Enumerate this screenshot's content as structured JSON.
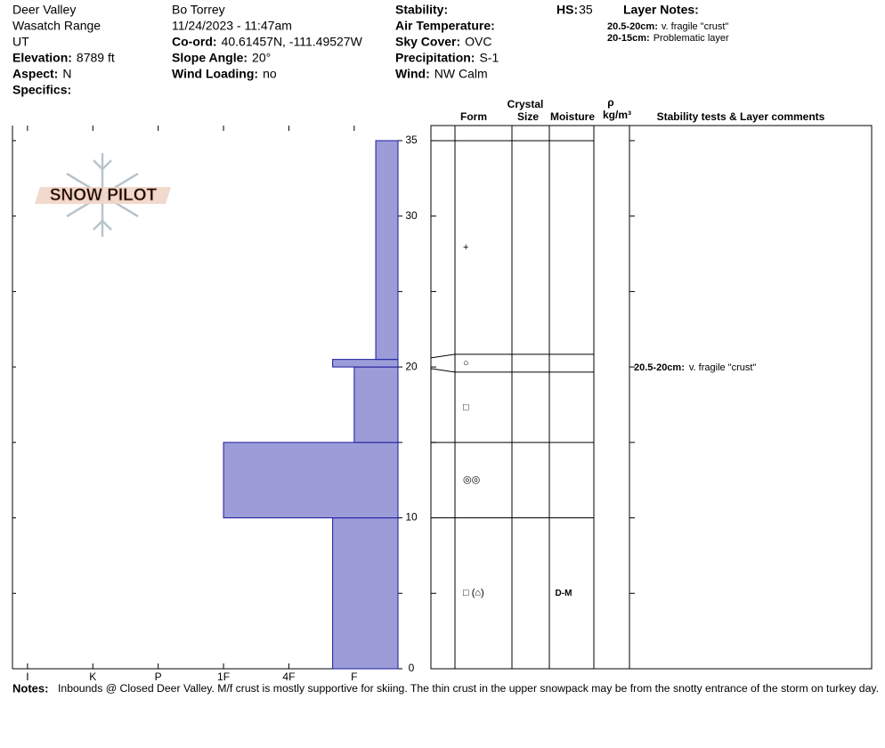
{
  "header": {
    "columns": [
      [
        {
          "value": "Deer Valley"
        },
        {
          "value": "Wasatch Range"
        },
        {
          "value": "UT"
        },
        {
          "label": "Elevation:",
          "value": "8789 ft"
        },
        {
          "label": "Aspect:",
          "value": "N"
        },
        {
          "label": "Specifics:"
        }
      ],
      [
        {
          "value": "Bo Torrey"
        },
        {
          "value": "11/24/2023 - 11:47am"
        },
        {
          "label": "Co-ord:",
          "value": "40.61457N, -111.49527W"
        },
        {
          "label": "Slope Angle:",
          "value": "20°"
        },
        {
          "label": "Wind Loading:",
          "value": "no"
        }
      ],
      [
        {
          "label": "Stability:"
        },
        {
          "label": "Air Temperature:"
        },
        {
          "label": "Sky Cover:",
          "value": "OVC"
        },
        {
          "label": "Precipitation:",
          "value": "S-1"
        },
        {
          "label": "Wind:",
          "value": "NW Calm"
        }
      ]
    ],
    "hs": {
      "label": "HS:",
      "value": "35"
    },
    "layer_notes": {
      "title": "Layer Notes:",
      "items": [
        {
          "range": "20.5-20cm:",
          "text": "v. fragile \"crust\""
        },
        {
          "range": "20-15cm:",
          "text": "Problematic layer"
        }
      ]
    }
  },
  "logo": "SNOW PILOT",
  "chart_data": {
    "type": "snow-profile",
    "xlim": [
      6.23,
      0.33
    ],
    "xticks": [
      {
        "value": 6,
        "label": "I"
      },
      {
        "value": 5,
        "label": "K"
      },
      {
        "value": 4,
        "label": "P"
      },
      {
        "value": 3,
        "label": "1F"
      },
      {
        "value": 2,
        "label": "4F"
      },
      {
        "value": 1,
        "label": "F"
      }
    ],
    "ylim": [
      0,
      36
    ],
    "yticks": [
      0,
      10,
      20,
      30,
      35
    ],
    "yticks_minor": [
      5,
      15,
      25
    ],
    "color": "#9c9cd8",
    "layers": [
      {
        "bottom": 0,
        "top": 10,
        "hardness": 1.33,
        "form": "□ (⌂)",
        "moisture": "D-M"
      },
      {
        "bottom": 10,
        "top": 15,
        "hardness": 3,
        "form": "◎◎"
      },
      {
        "bottom": 15,
        "top": 20,
        "hardness": 1,
        "form": "□"
      },
      {
        "bottom": 20,
        "top": 20.5,
        "hardness": 1.33,
        "form": "○",
        "comment": {
          "range": "20.5-20cm:",
          "text": "v. fragile \"crust\""
        }
      },
      {
        "bottom": 20.5,
        "top": 35,
        "hardness": 0.67,
        "form": "+"
      }
    ],
    "columns": {
      "crystal": "Crystal",
      "form": "Form",
      "size": "Size",
      "moisture": "Moisture",
      "density_symbol": "ρ",
      "density_unit": "kg/m³",
      "comments": "Stability tests & Layer comments"
    }
  },
  "notes": {
    "label": "Notes:",
    "text": "Inbounds @ Closed Deer Valley. M/f crust is mostly supportive for skiing. The thin crust in the upper snowpack may be from the snotty entrance of the storm on turkey day."
  }
}
